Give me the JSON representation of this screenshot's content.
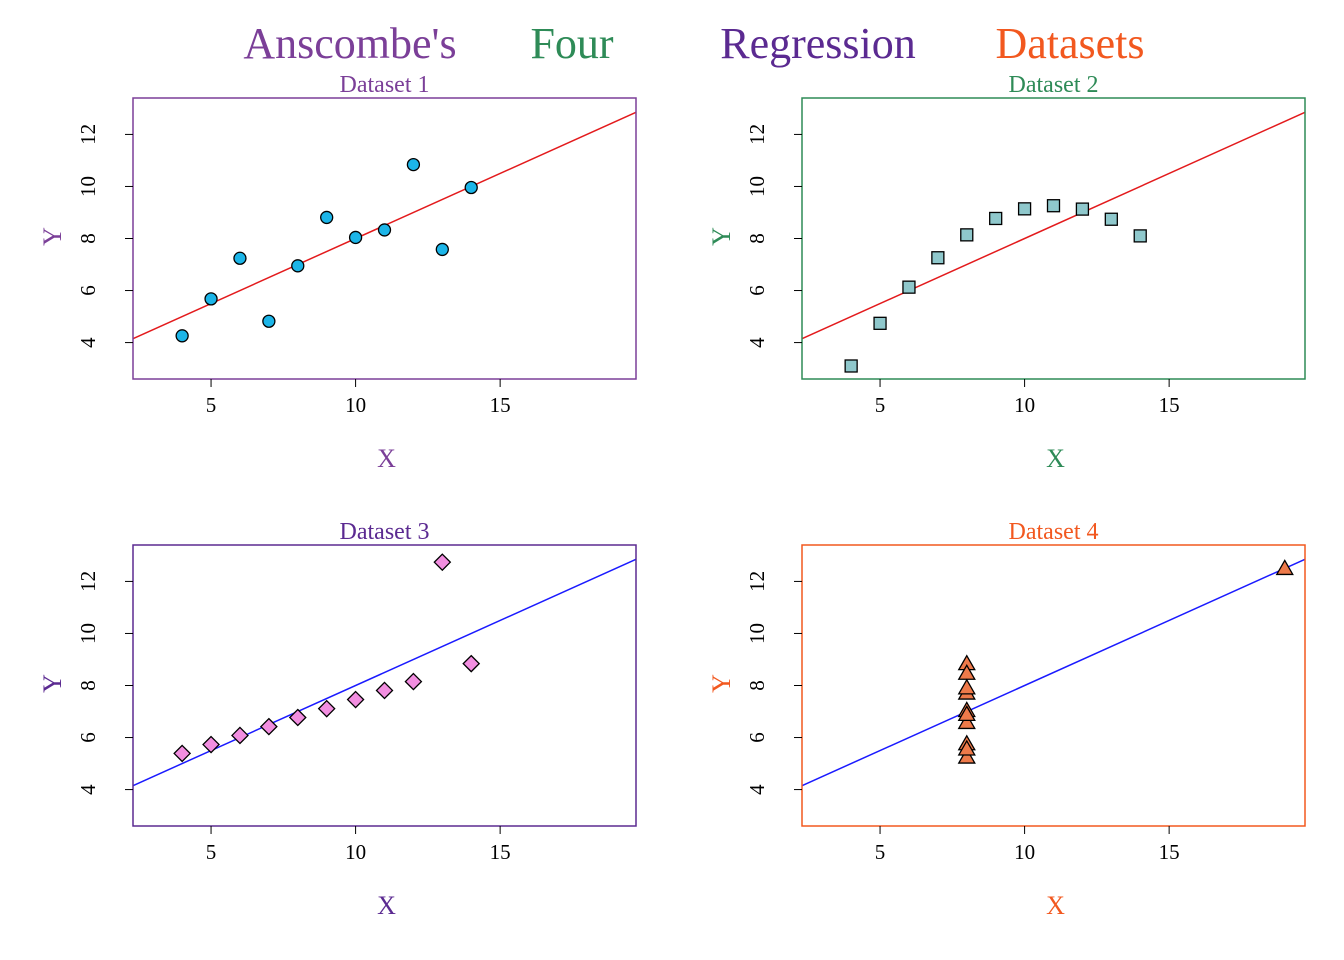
{
  "title": {
    "words": [
      {
        "text": "Anscombe's",
        "color": "#7b3f98"
      },
      {
        "text": "Four",
        "color": "#2e8b57"
      },
      {
        "text": "Regression",
        "color": "#5b2a91"
      },
      {
        "text": "Datasets",
        "color": "#f2581f"
      }
    ]
  },
  "chart_data": [
    {
      "type": "scatter",
      "title": "Dataset 1",
      "xlabel": "X",
      "ylabel": "Y",
      "xlim": [
        2.3,
        19.7
      ],
      "ylim": [
        2.6,
        13.4
      ],
      "xticks": [
        5,
        10,
        15
      ],
      "yticks": [
        4,
        6,
        8,
        10,
        12
      ],
      "grid": false,
      "accent_color": "#7b3f98",
      "marker": "circle",
      "marker_fill": "#1cb5e8",
      "regression_line": {
        "intercept": 3.0,
        "slope": 0.5,
        "color": "#e31a1c"
      },
      "x": [
        10,
        8,
        13,
        9,
        11,
        14,
        6,
        4,
        12,
        7,
        5
      ],
      "y": [
        8.04,
        6.95,
        7.58,
        8.81,
        8.33,
        9.96,
        7.24,
        4.26,
        10.84,
        4.82,
        5.68
      ]
    },
    {
      "type": "scatter",
      "title": "Dataset 2",
      "xlabel": "X",
      "ylabel": "Y",
      "xlim": [
        2.3,
        19.7
      ],
      "ylim": [
        2.6,
        13.4
      ],
      "xticks": [
        5,
        10,
        15
      ],
      "yticks": [
        4,
        6,
        8,
        10,
        12
      ],
      "grid": false,
      "accent_color": "#2e8b57",
      "marker": "square",
      "marker_fill": "#8fc8cc",
      "regression_line": {
        "intercept": 3.0,
        "slope": 0.5,
        "color": "#e31a1c"
      },
      "x": [
        10,
        8,
        13,
        9,
        11,
        14,
        6,
        4,
        12,
        7,
        5
      ],
      "y": [
        9.14,
        8.14,
        8.74,
        8.77,
        9.26,
        8.1,
        6.13,
        3.1,
        9.13,
        7.26,
        4.74
      ]
    },
    {
      "type": "scatter",
      "title": "Dataset 3",
      "xlabel": "X",
      "ylabel": "Y",
      "xlim": [
        2.3,
        19.7
      ],
      "ylim": [
        2.6,
        13.4
      ],
      "xticks": [
        5,
        10,
        15
      ],
      "yticks": [
        4,
        6,
        8,
        10,
        12
      ],
      "grid": false,
      "accent_color": "#5b2a91",
      "marker": "diamond",
      "marker_fill": "#f28ee0",
      "regression_line": {
        "intercept": 3.0,
        "slope": 0.5,
        "color": "#1a1aff"
      },
      "x": [
        10,
        8,
        13,
        9,
        11,
        14,
        6,
        4,
        12,
        7,
        5
      ],
      "y": [
        7.46,
        6.77,
        12.74,
        7.11,
        7.81,
        8.84,
        6.08,
        5.39,
        8.15,
        6.42,
        5.73
      ]
    },
    {
      "type": "scatter",
      "title": "Dataset 4",
      "xlabel": "X",
      "ylabel": "Y",
      "xlim": [
        2.3,
        19.7
      ],
      "ylim": [
        2.6,
        13.4
      ],
      "xticks": [
        5,
        10,
        15
      ],
      "yticks": [
        4,
        6,
        8,
        10,
        12
      ],
      "grid": false,
      "accent_color": "#f2581f",
      "marker": "triangle",
      "marker_fill": "#ee7a4a",
      "regression_line": {
        "intercept": 3.0,
        "slope": 0.5,
        "color": "#1a1aff"
      },
      "x": [
        8,
        8,
        8,
        8,
        8,
        8,
        8,
        19,
        8,
        8,
        8
      ],
      "y": [
        6.58,
        5.76,
        7.71,
        8.84,
        8.47,
        7.04,
        5.25,
        12.5,
        5.56,
        7.91,
        6.89
      ]
    }
  ]
}
